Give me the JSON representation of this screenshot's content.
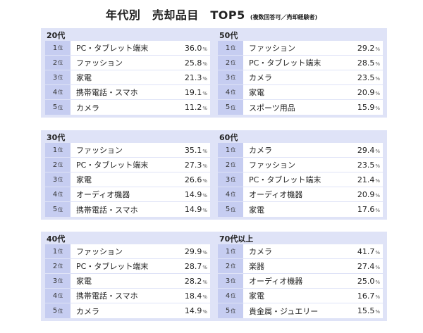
{
  "title": {
    "main": "年代別　売却品目　TOP5",
    "sub": "(複数回答可／売却経験者)"
  },
  "rank_suffix": "位",
  "unit": "%",
  "chart_data": [
    {
      "type": "table",
      "title": "20代",
      "rows": [
        {
          "rank": "1",
          "item": "PC・タブレット端末",
          "value": "36.0"
        },
        {
          "rank": "2",
          "item": "ファッション",
          "value": "25.8"
        },
        {
          "rank": "3",
          "item": "家電",
          "value": "21.3"
        },
        {
          "rank": "4",
          "item": "携帯電話・スマホ",
          "value": "19.1"
        },
        {
          "rank": "5",
          "item": "カメラ",
          "value": "11.2"
        }
      ]
    },
    {
      "type": "table",
      "title": "50代",
      "rows": [
        {
          "rank": "1",
          "item": "ファッション",
          "value": "29.2"
        },
        {
          "rank": "2",
          "item": "PC・タブレット端末",
          "value": "28.5"
        },
        {
          "rank": "3",
          "item": "カメラ",
          "value": "23.5"
        },
        {
          "rank": "4",
          "item": "家電",
          "value": "20.9"
        },
        {
          "rank": "5",
          "item": "スポーツ用品",
          "value": "15.9"
        }
      ]
    },
    {
      "type": "table",
      "title": "30代",
      "rows": [
        {
          "rank": "1",
          "item": "ファッション",
          "value": "35.1"
        },
        {
          "rank": "2",
          "item": "PC・タブレット端末",
          "value": "27.3"
        },
        {
          "rank": "3",
          "item": "家電",
          "value": "26.6"
        },
        {
          "rank": "4",
          "item": "オーディオ機器",
          "value": "14.9"
        },
        {
          "rank": "5",
          "item": "携帯電話・スマホ",
          "value": "14.9"
        }
      ]
    },
    {
      "type": "table",
      "title": "60代",
      "rows": [
        {
          "rank": "1",
          "item": "カメラ",
          "value": "29.4"
        },
        {
          "rank": "2",
          "item": "ファッション",
          "value": "23.5"
        },
        {
          "rank": "3",
          "item": "PC・タブレット端末",
          "value": "21.4"
        },
        {
          "rank": "4",
          "item": "オーディオ機器",
          "value": "20.9"
        },
        {
          "rank": "5",
          "item": "家電",
          "value": "17.6"
        }
      ]
    },
    {
      "type": "table",
      "title": "40代",
      "rows": [
        {
          "rank": "1",
          "item": "ファッション",
          "value": "29.9"
        },
        {
          "rank": "2",
          "item": "PC・タブレット端末",
          "value": "28.7"
        },
        {
          "rank": "3",
          "item": "家電",
          "value": "28.2"
        },
        {
          "rank": "4",
          "item": "携帯電話・スマホ",
          "value": "18.4"
        },
        {
          "rank": "5",
          "item": "カメラ",
          "value": "14.9"
        }
      ]
    },
    {
      "type": "table",
      "title": "70代以上",
      "rows": [
        {
          "rank": "1",
          "item": "カメラ",
          "value": "41.7"
        },
        {
          "rank": "2",
          "item": "楽器",
          "value": "27.4"
        },
        {
          "rank": "3",
          "item": "オーディオ機器",
          "value": "25.0"
        },
        {
          "rank": "4",
          "item": "家電",
          "value": "16.7"
        },
        {
          "rank": "5",
          "item": "貴金属・ジュエリー",
          "value": "15.5"
        }
      ]
    }
  ]
}
